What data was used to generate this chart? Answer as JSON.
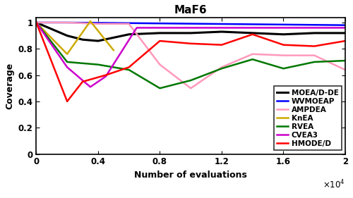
{
  "title": "MaF6",
  "xlabel": "Number of evaluations",
  "ylabel": "Coverage",
  "xlim": [
    0,
    20000
  ],
  "ylim": [
    0,
    1.04
  ],
  "xtick_positions": [
    0,
    4000,
    8000,
    12000,
    16000,
    20000
  ],
  "xtick_labels": [
    "0",
    "0.4",
    "0.8",
    "1.2",
    "1.6",
    "2"
  ],
  "ytick_positions": [
    0,
    0.2,
    0.4,
    0.6,
    0.8,
    1.0
  ],
  "ytick_labels": [
    "0",
    "0.2",
    "0.4",
    "0.6",
    "0.8",
    "1"
  ],
  "series": [
    {
      "name": "MOEA/D-DE",
      "color": "#000000",
      "linewidth": 2.2,
      "x": [
        0,
        2000,
        3000,
        4000,
        6000,
        8000,
        10000,
        12000,
        14000,
        16000,
        18000,
        20000
      ],
      "y": [
        1.0,
        0.9,
        0.87,
        0.86,
        0.91,
        0.92,
        0.92,
        0.93,
        0.92,
        0.91,
        0.92,
        0.92
      ]
    },
    {
      "name": "WVMOEAP",
      "color": "#0000ff",
      "linewidth": 1.8,
      "x": [
        0,
        2000,
        20000
      ],
      "y": [
        1.0,
        1.0,
        0.98
      ]
    },
    {
      "name": "AMPDEA",
      "color": "#ff99bb",
      "linewidth": 1.8,
      "x": [
        0,
        2000,
        4000,
        6000,
        8000,
        10000,
        12000,
        14000,
        16000,
        18000,
        20000
      ],
      "y": [
        1.0,
        1.0,
        0.99,
        0.99,
        0.68,
        0.5,
        0.66,
        0.76,
        0.75,
        0.75,
        0.64
      ]
    },
    {
      "name": "KnEA",
      "color": "#ccaa00",
      "linewidth": 1.8,
      "x": [
        0,
        2000,
        3500,
        5000
      ],
      "y": [
        1.0,
        0.76,
        1.01,
        0.79
      ]
    },
    {
      "name": "RVEA",
      "color": "#007700",
      "linewidth": 1.8,
      "x": [
        0,
        2000,
        4000,
        6000,
        8000,
        10000,
        12000,
        14000,
        16000,
        18000,
        20000
      ],
      "y": [
        1.0,
        0.7,
        0.68,
        0.64,
        0.5,
        0.56,
        0.65,
        0.72,
        0.65,
        0.7,
        0.71
      ]
    },
    {
      "name": "CVEA3",
      "color": "#cc00cc",
      "linewidth": 1.8,
      "x": [
        0,
        2000,
        3500,
        4500,
        6500,
        8000,
        20000
      ],
      "y": [
        1.0,
        0.66,
        0.51,
        0.59,
        0.96,
        0.96,
        0.96
      ]
    },
    {
      "name": "HMODE/D",
      "color": "#ff0000",
      "linewidth": 1.8,
      "x": [
        0,
        2000,
        3000,
        4500,
        6000,
        8000,
        10000,
        12000,
        14000,
        16000,
        18000,
        20000
      ],
      "y": [
        1.0,
        0.4,
        0.55,
        0.6,
        0.66,
        0.86,
        0.84,
        0.83,
        0.91,
        0.83,
        0.82,
        0.86
      ]
    }
  ],
  "legend_loc": "lower right",
  "legend_fontsize": 7.5,
  "legend_bold": true,
  "title_fontsize": 11,
  "label_fontsize": 9,
  "tick_fontsize": 8.5,
  "exponent_fontsize": 8.5
}
